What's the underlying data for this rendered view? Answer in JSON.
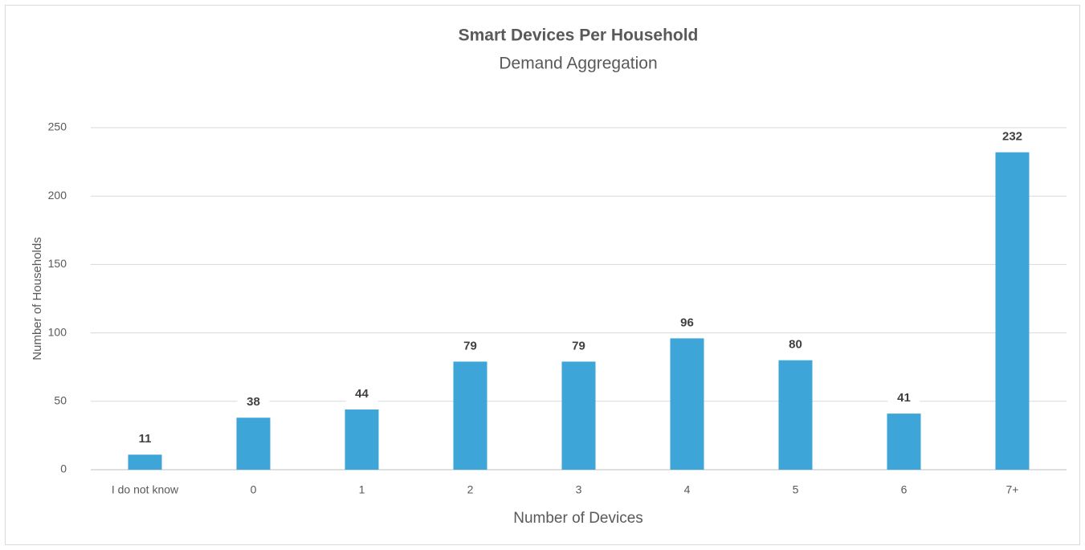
{
  "chart_data": {
    "type": "bar",
    "title": "Smart Devices Per Household",
    "subtitle": "Demand Aggregation",
    "x_label": "Number of Devices",
    "y_label": "Number of Households",
    "categories": [
      "I do not know",
      "0",
      "1",
      "2",
      "3",
      "4",
      "5",
      "6",
      "7+"
    ],
    "values": [
      11,
      38,
      44,
      79,
      79,
      96,
      80,
      41,
      232
    ],
    "color": "#3ea5d8",
    "ylim": [
      0,
      250
    ],
    "yticks": [
      0,
      50,
      100,
      150,
      200,
      250
    ],
    "grid": true,
    "data_labels": true
  }
}
